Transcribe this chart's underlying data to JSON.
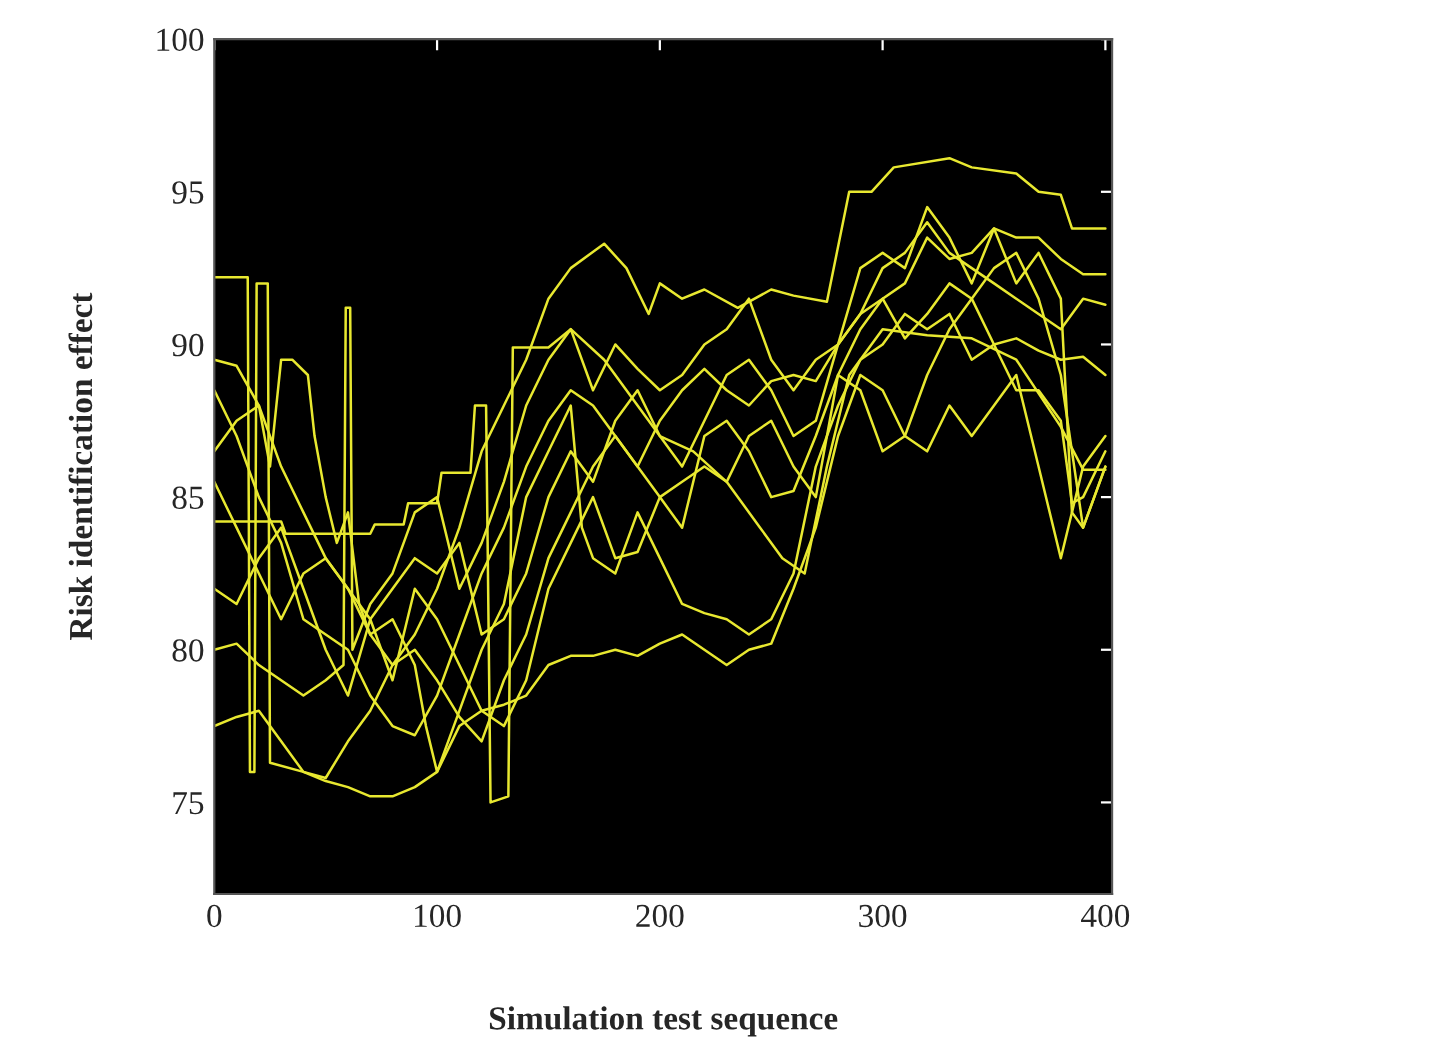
{
  "chart_data": {
    "type": "line",
    "xlabel": "Simulation test sequence",
    "ylabel": "Risk identification effect",
    "xlim": [
      0,
      403
    ],
    "ylim": [
      72,
      100
    ],
    "xticks": [
      0,
      100,
      200,
      300,
      400
    ],
    "yticks": [
      75,
      80,
      85,
      90,
      95,
      100
    ],
    "series": [
      {
        "color": "#e8e830",
        "x": [
          0,
          10,
          20,
          30,
          40,
          50,
          60,
          70,
          80,
          90,
          100,
          110,
          120,
          130,
          140,
          150,
          160,
          175,
          185,
          195,
          200,
          210,
          220,
          235,
          250,
          260,
          275,
          285,
          295,
          305,
          330,
          340,
          360,
          370,
          380,
          385,
          400
        ],
        "values": [
          89.5,
          89.3,
          88,
          86,
          84.5,
          83,
          82,
          80.5,
          79.5,
          80.5,
          82,
          84,
          86.5,
          88,
          89.5,
          91.5,
          92.5,
          93.3,
          92.5,
          91,
          92,
          91.5,
          91.8,
          91.2,
          91.8,
          91.6,
          91.4,
          95,
          95,
          95.8,
          96.1,
          95.8,
          95.6,
          95,
          94.9,
          93.8,
          93.8
        ]
      },
      {
        "color": "#e8e830",
        "x": [
          0,
          10,
          20,
          30,
          40,
          50,
          60,
          70,
          80,
          90,
          100,
          110,
          120,
          130,
          140,
          150,
          160,
          170,
          180,
          190,
          200,
          210,
          220,
          230,
          240,
          250,
          260,
          270,
          280,
          290,
          300,
          310,
          320,
          330,
          340,
          350,
          360,
          370,
          380,
          390,
          400
        ],
        "values": [
          77.5,
          77.8,
          78,
          77,
          76,
          75.7,
          75.5,
          75.2,
          75.2,
          75.5,
          76,
          77.5,
          78,
          78.2,
          78.5,
          79.5,
          79.8,
          79.8,
          80,
          79.8,
          80.2,
          80.5,
          80,
          79.5,
          80,
          80.2,
          82,
          84,
          87,
          89,
          88.5,
          87,
          86.5,
          88,
          87,
          88,
          89,
          86,
          83,
          86,
          87
        ]
      },
      {
        "color": "#e8e830",
        "x": [
          0,
          30,
          32,
          70,
          72,
          85,
          87,
          100,
          102,
          115,
          117,
          122,
          124,
          132,
          134,
          150,
          160,
          175,
          190,
          200,
          215,
          230,
          245,
          255,
          265,
          275,
          285,
          300,
          320,
          340,
          360,
          380,
          390,
          400
        ],
        "values": [
          84.2,
          84.2,
          83.8,
          83.8,
          84.1,
          84.1,
          84.8,
          84.8,
          85.8,
          85.8,
          88,
          88,
          75,
          75.2,
          89.9,
          89.9,
          90.5,
          89.5,
          88,
          87,
          86.5,
          85.5,
          84,
          83,
          82.5,
          86,
          89,
          90.5,
          90.3,
          90.2,
          89.5,
          87.3,
          85.9,
          85.9
        ]
      },
      {
        "color": "#e8e830",
        "x": [
          0,
          15,
          16,
          18,
          19,
          24,
          25,
          40,
          50,
          60,
          70,
          80,
          90,
          100,
          110,
          120,
          130,
          140,
          150,
          160,
          170,
          180,
          190,
          200,
          210,
          220,
          230,
          240,
          250,
          260,
          270,
          280,
          290,
          300,
          310,
          320,
          330,
          340,
          350,
          360,
          370,
          380,
          390,
          400
        ],
        "values": [
          92.2,
          92.2,
          76,
          76,
          92,
          92,
          76.3,
          76,
          75.8,
          77,
          78,
          79.5,
          80,
          79,
          77.8,
          77,
          79,
          80.5,
          83,
          84.5,
          86,
          87,
          86,
          85,
          85.5,
          86,
          85.5,
          87,
          87.5,
          86,
          85,
          89,
          90.5,
          91.5,
          92,
          93.5,
          92.8,
          93,
          93.8,
          93.5,
          93.5,
          92.8,
          92.3,
          92.3
        ]
      },
      {
        "color": "#e8e830",
        "x": [
          0,
          10,
          20,
          30,
          40,
          50,
          58,
          59,
          61,
          62,
          70,
          80,
          90,
          100,
          110,
          120,
          130,
          140,
          150,
          160,
          170,
          180,
          190,
          200,
          210,
          220,
          230,
          240,
          250,
          260,
          270,
          280,
          290,
          300,
          310,
          320,
          330,
          340,
          350,
          360,
          370,
          380,
          390,
          400
        ],
        "values": [
          80,
          80.2,
          79.5,
          79,
          78.5,
          79,
          79.5,
          91.2,
          91.2,
          80,
          81.5,
          82.5,
          84.5,
          85,
          82,
          83.5,
          85.5,
          88,
          89.5,
          90.5,
          88.5,
          90,
          89.2,
          88.5,
          89,
          90,
          90.5,
          91.5,
          89.5,
          88.5,
          89.5,
          90,
          91,
          92.5,
          93,
          94,
          93,
          92.5,
          92,
          91.5,
          91,
          90.5,
          91.5,
          91.3
        ]
      },
      {
        "color": "#e8e830",
        "x": [
          0,
          10,
          20,
          25,
          30,
          35,
          42,
          45,
          50,
          55,
          60,
          65,
          70,
          80,
          90,
          95,
          100,
          110,
          120,
          130,
          140,
          150,
          160,
          165,
          170,
          180,
          190,
          200,
          210,
          220,
          230,
          240,
          250,
          260,
          270,
          280,
          290,
          300,
          310,
          320,
          330,
          340,
          350,
          360,
          370,
          380,
          390,
          400
        ],
        "values": [
          86.5,
          87.5,
          88,
          86,
          89.5,
          89.5,
          89,
          87,
          85,
          83.5,
          84.5,
          81.5,
          80.5,
          81,
          79.5,
          77.5,
          76,
          78,
          80,
          81.5,
          85,
          86.5,
          88,
          84,
          83,
          82.5,
          84.5,
          83,
          81.5,
          81.2,
          81,
          80.5,
          81,
          82.5,
          86,
          88,
          89.5,
          90,
          91,
          90.5,
          91,
          89.5,
          90,
          90.2,
          89.8,
          89.5,
          89.6,
          89
        ]
      },
      {
        "color": "#e8e830",
        "x": [
          0,
          10,
          20,
          30,
          40,
          50,
          60,
          70,
          80,
          90,
          100,
          110,
          120,
          130,
          140,
          150,
          160,
          170,
          180,
          190,
          200,
          210,
          220,
          230,
          240,
          250,
          260,
          270,
          280,
          290,
          300,
          310,
          320,
          330,
          340,
          350,
          360,
          370,
          380,
          385,
          390,
          400
        ],
        "values": [
          88.5,
          87,
          85,
          83.5,
          81,
          80.5,
          80,
          78.5,
          77.5,
          77.2,
          78.5,
          80.5,
          82.5,
          84,
          86,
          87.5,
          88.5,
          88,
          87,
          86,
          87.5,
          88.5,
          89.2,
          88.5,
          88,
          88.8,
          89,
          88.8,
          90,
          91,
          91.5,
          90.2,
          91,
          92,
          91.5,
          90,
          88.5,
          88.5,
          87.5,
          84.8,
          85,
          86.5
        ]
      },
      {
        "color": "#e8e830",
        "x": [
          0,
          10,
          20,
          30,
          40,
          50,
          60,
          70,
          80,
          90,
          100,
          110,
          120,
          130,
          140,
          150,
          160,
          170,
          180,
          190,
          200,
          210,
          220,
          230,
          240,
          250,
          260,
          270,
          280,
          290,
          300,
          310,
          320,
          330,
          340,
          350,
          360,
          370,
          380,
          385,
          390,
          400
        ],
        "values": [
          85.5,
          84,
          82.5,
          81,
          82.5,
          83,
          82,
          81,
          82,
          83,
          82.5,
          83.5,
          80.5,
          81,
          82.5,
          85,
          86.5,
          85.5,
          87.5,
          88.5,
          87,
          86,
          87.5,
          89,
          89.5,
          88.5,
          87,
          87.5,
          90,
          92.5,
          93,
          92.5,
          94.5,
          93.5,
          92,
          93.8,
          92,
          93,
          91.5,
          84.5,
          84,
          86
        ]
      },
      {
        "color": "#e8e830",
        "x": [
          0,
          10,
          20,
          30,
          40,
          50,
          60,
          70,
          80,
          90,
          100,
          110,
          120,
          130,
          140,
          150,
          160,
          170,
          180,
          190,
          200,
          210,
          220,
          230,
          240,
          250,
          260,
          270,
          280,
          290,
          300,
          310,
          320,
          330,
          340,
          350,
          360,
          370,
          380,
          390,
          400
        ],
        "values": [
          82,
          81.5,
          83,
          84,
          82,
          80,
          78.5,
          81,
          79,
          82,
          81,
          79.5,
          78,
          77.5,
          79,
          82,
          83.5,
          85,
          83,
          83.2,
          85,
          84,
          87,
          87.5,
          86.5,
          85,
          85.2,
          87,
          89,
          88.5,
          86.5,
          87,
          89,
          90.5,
          91.5,
          92.5,
          93,
          91.5,
          89,
          84,
          86
        ]
      }
    ]
  }
}
